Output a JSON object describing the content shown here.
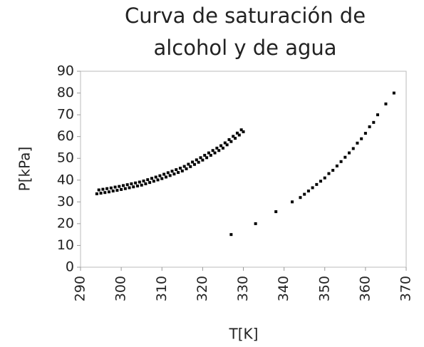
{
  "chart_data": {
    "type": "scatter",
    "title": [
      "Curva de saturación de",
      "alcohol y de agua"
    ],
    "x_label": "T[K]",
    "y_label": "P[kPa]",
    "xlim": [
      290,
      370
    ],
    "xticks": [
      290,
      300,
      310,
      320,
      330,
      340,
      350,
      360,
      370
    ],
    "ylim": [
      0,
      90
    ],
    "yticks": [
      0,
      10,
      20,
      30,
      40,
      50,
      60,
      70,
      80,
      90
    ],
    "grid": false,
    "series": [
      {
        "color": "#000000",
        "x": [
          294,
          294.5,
          295,
          295.5,
          296,
          296.5,
          297,
          297.5,
          298,
          298.5,
          299,
          299.5,
          300,
          300.5,
          301,
          301.5,
          302,
          302.5,
          303,
          303.5,
          304,
          304.5,
          305,
          305.5,
          306,
          306.5,
          307,
          307.5,
          308,
          308.5,
          309,
          309.5,
          310,
          310.5,
          311,
          311.5,
          312,
          312.5,
          313,
          313.5,
          314,
          314.5,
          315,
          315.5,
          316,
          316.5,
          317,
          317.5,
          318,
          318.5,
          319,
          319.5,
          320,
          320.5,
          321,
          321.5,
          322,
          322.5,
          323,
          323.5,
          324,
          324.5,
          325,
          325.5,
          326,
          326.5,
          327,
          327.5,
          328,
          328.5,
          329,
          329.5,
          330
        ],
        "values": [
          33.7,
          35.5,
          34.0,
          35.8,
          34.3,
          36.1,
          34.6,
          36.4,
          35.0,
          36.8,
          35.3,
          37.1,
          35.7,
          37.5,
          36.1,
          37.9,
          36.5,
          38.3,
          36.9,
          38.7,
          37.3,
          39.1,
          37.7,
          39.6,
          38.3,
          40.2,
          38.9,
          40.8,
          39.5,
          41.4,
          40.1,
          42.0,
          40.7,
          42.7,
          41.4,
          43.4,
          42.1,
          44.1,
          42.8,
          44.8,
          43.5,
          45.5,
          44.2,
          46.3,
          45.2,
          47.3,
          46.2,
          48.3,
          47.2,
          49.3,
          48.2,
          50.3,
          49.2,
          51.4,
          50.3,
          52.5,
          51.4,
          53.6,
          52.5,
          54.7,
          53.6,
          55.8,
          54.7,
          57.1,
          56.2,
          58.6,
          57.7,
          60.1,
          59.2,
          61.6,
          60.7,
          63.1,
          62.2
        ]
      },
      {
        "color": "#000000",
        "x": [
          327,
          333,
          338,
          342,
          344,
          345,
          346,
          347,
          348,
          349,
          350,
          351,
          352,
          353,
          354,
          355,
          356,
          357,
          358,
          359,
          360,
          361,
          362,
          363,
          365,
          367
        ],
        "values": [
          15,
          20,
          25.5,
          30,
          32,
          33.5,
          35,
          36.5,
          38,
          39.5,
          41,
          43,
          44.5,
          46.5,
          48.5,
          50.5,
          52.5,
          54.5,
          57,
          59,
          61.5,
          64.5,
          66.5,
          70,
          75,
          80
        ]
      }
    ]
  }
}
